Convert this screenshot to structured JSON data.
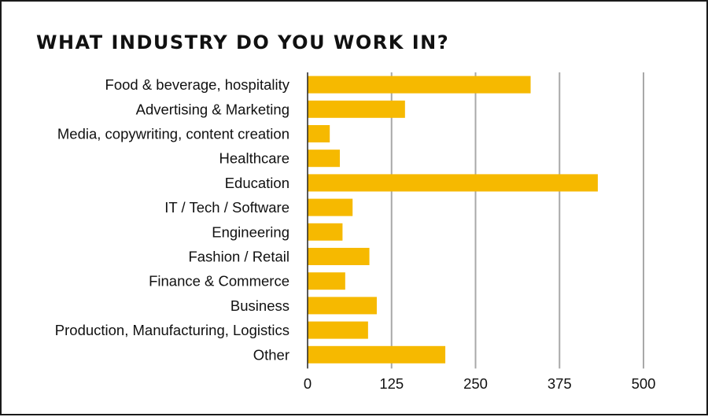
{
  "chart_data": {
    "type": "bar",
    "orientation": "horizontal",
    "title": "WHAT INDUSTRY DO YOU WORK IN?",
    "xlabel": "",
    "ylabel": "",
    "categories": [
      "Food & beverage, hospitality",
      "Advertising & Marketing",
      "Media, copywriting, content creation",
      "Healthcare",
      "Education",
      "IT / Tech / Software",
      "Engineering",
      "Fashion / Retail",
      "Finance & Commerce",
      "Business",
      "Production, Manufacturing, Logistics",
      "Other"
    ],
    "values": [
      332,
      145,
      33,
      48,
      432,
      67,
      52,
      92,
      56,
      103,
      90,
      205
    ],
    "xlim": [
      0,
      500
    ],
    "xticks": [
      0,
      125,
      250,
      375,
      500
    ],
    "grid": true,
    "bar_color": "#f6b900",
    "grid_color": "#a8a8a8"
  }
}
